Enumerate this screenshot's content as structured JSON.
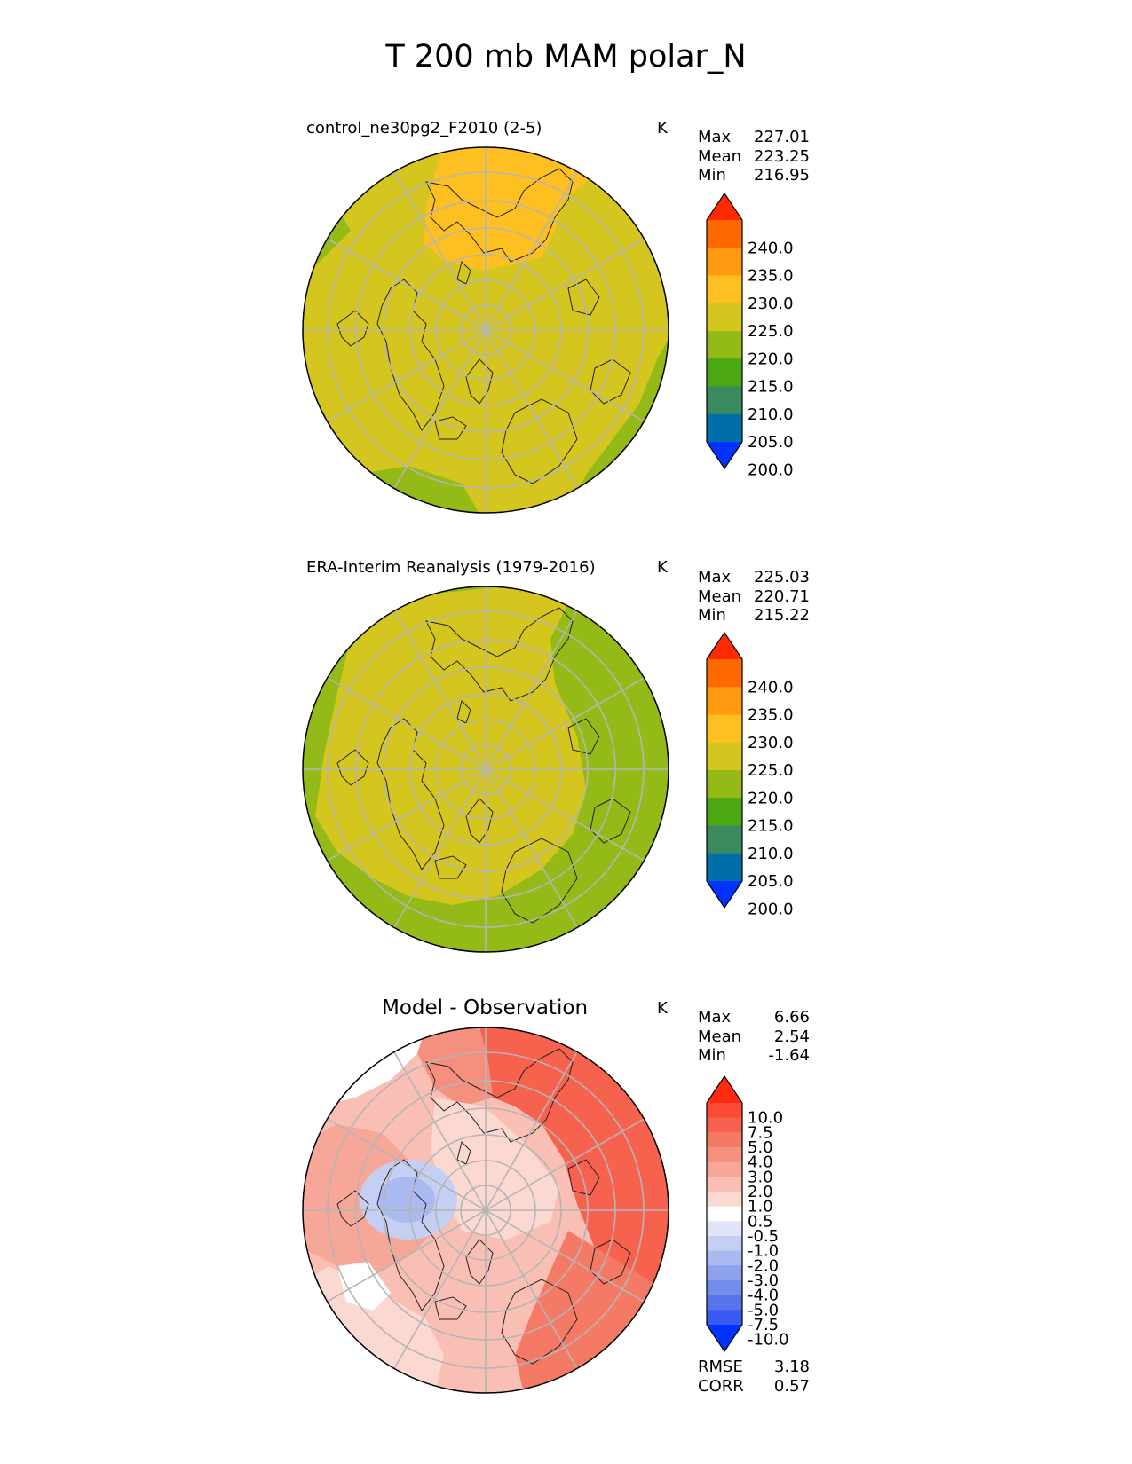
{
  "title": "T 200 mb MAM polar_N",
  "panels": [
    {
      "id": "model",
      "title": "control_ne30pg2_F2010 (2-5)",
      "units": "K",
      "stats": [
        {
          "label": "Max",
          "value": "227.01"
        },
        {
          "label": "Mean",
          "value": "223.25"
        },
        {
          "label": "Min",
          "value": "216.95"
        }
      ]
    },
    {
      "id": "obs",
      "title": "ERA-Interim Reanalysis (1979-2016)",
      "units": "K",
      "stats": [
        {
          "label": "Max",
          "value": "225.03"
        },
        {
          "label": "Mean",
          "value": "220.71"
        },
        {
          "label": "Min",
          "value": "215.22"
        }
      ]
    },
    {
      "id": "diff",
      "title": "Model - Observation",
      "units": "K",
      "stats": [
        {
          "label": "Max",
          "value": "6.66"
        },
        {
          "label": "Mean",
          "value": "2.54"
        },
        {
          "label": "Min",
          "value": "-1.64"
        }
      ],
      "metrics": [
        {
          "label": "RMSE",
          "value": "3.18"
        },
        {
          "label": "CORR",
          "value": "0.57"
        }
      ]
    }
  ],
  "colorbars": {
    "absolute": {
      "labels": [
        "240.0",
        "235.0",
        "230.0",
        "225.0",
        "220.0",
        "215.0",
        "210.0",
        "205.0",
        "200.0"
      ],
      "colors": [
        "#ff2a00",
        "#ff6a00",
        "#ff9a10",
        "#fdc020",
        "#d4c61e",
        "#94ba18",
        "#4ca812",
        "#3a8a5e",
        "#006ea8",
        "#0033ff"
      ]
    },
    "difference": {
      "labels": [
        "10.0",
        "7.5",
        "5.0",
        "4.0",
        "3.0",
        "2.0",
        "1.0",
        "0.5",
        "-0.5",
        "-1.0",
        "-2.0",
        "-3.0",
        "-4.0",
        "-5.0",
        "-7.5",
        "-10.0"
      ],
      "colors": [
        "#ff2a10",
        "#fb4a36",
        "#f7624f",
        "#f57a66",
        "#f58f7e",
        "#f7a798",
        "#f9bfb4",
        "#fbd8d0",
        "#ffffff",
        "#dfe4f8",
        "#c5cff4",
        "#aab9f0",
        "#8ea2ec",
        "#748cea",
        "#5874ec",
        "#3a58f2",
        "#0033ff"
      ]
    }
  }
}
